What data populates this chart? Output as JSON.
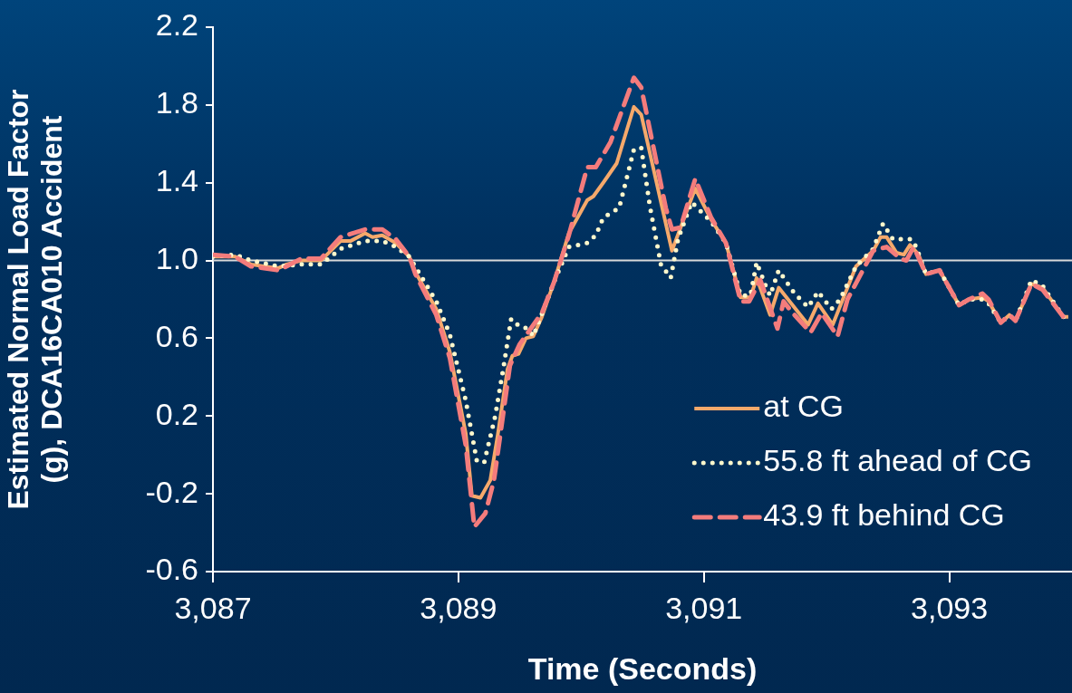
{
  "chart_data": {
    "type": "line",
    "xlabel": "Time (Seconds)",
    "ylabel": "Estimated Normal Load Factor (g), DCA16CA010 Accident",
    "xlim": [
      3087,
      3094
    ],
    "xticks": [
      {
        "value": 3087,
        "label": "3,087"
      },
      {
        "value": 3089,
        "label": "3,089"
      },
      {
        "value": 3091,
        "label": "3,091"
      },
      {
        "value": 3093,
        "label": "3,093"
      }
    ],
    "ylim": [
      -0.6,
      2.2
    ],
    "yticks": [
      -0.6,
      -0.2,
      0.2,
      0.6,
      {
        "value": 1,
        "label": "1.0"
      },
      1.4,
      1.8,
      2.2
    ],
    "grid": false,
    "legend": "bottom right",
    "marker": "none",
    "ref_lines": [
      {
        "axis": "y",
        "value": 1,
        "color": "#d9d9d9"
      }
    ],
    "series": [
      {
        "name": "at CG",
        "color": "#f6a96b",
        "line_style": "solid",
        "x": [
          3087.0,
          3087.18,
          3087.31,
          3087.53,
          3087.6,
          3087.72,
          3087.88,
          3088.04,
          3088.12,
          3088.24,
          3088.3,
          3088.38,
          3088.49,
          3088.6,
          3088.65,
          3088.82,
          3088.93,
          3089.06,
          3089.11,
          3089.18,
          3089.26,
          3089.32,
          3089.4,
          3089.44,
          3089.49,
          3089.55,
          3089.61,
          3089.68,
          3089.78,
          3089.9,
          3090.05,
          3090.1,
          3090.18,
          3090.29,
          3090.43,
          3090.49,
          3090.74,
          3090.93,
          3091.06,
          3091.18,
          3091.3,
          3091.38,
          3091.43,
          3091.54,
          3091.61,
          3091.85,
          3091.93,
          3092.05,
          3092.24,
          3092.38,
          3092.44,
          3092.49,
          3092.57,
          3092.63,
          3092.68,
          3092.75,
          3092.81,
          3092.92,
          3093.08,
          3093.16,
          3093.27,
          3093.32,
          3093.42,
          3093.49,
          3093.54,
          3093.67,
          3093.76,
          3093.93,
          3093.97
        ],
        "values": [
          1.02,
          1.02,
          0.98,
          0.96,
          0.98,
          1.0,
          1.0,
          1.1,
          1.1,
          1.14,
          1.12,
          1.13,
          1.09,
          1.02,
          0.94,
          0.75,
          0.53,
          0.11,
          -0.21,
          -0.22,
          -0.13,
          0.1,
          0.44,
          0.51,
          0.52,
          0.6,
          0.61,
          0.71,
          0.89,
          1.14,
          1.31,
          1.33,
          1.4,
          1.5,
          1.79,
          1.75,
          1.05,
          1.37,
          1.21,
          1.09,
          0.81,
          0.81,
          0.91,
          0.72,
          0.86,
          0.67,
          0.78,
          0.67,
          0.97,
          1.05,
          1.12,
          1.12,
          1.04,
          1.03,
          1.08,
          1.03,
          0.93,
          0.95,
          0.77,
          0.8,
          0.81,
          0.79,
          0.68,
          0.72,
          0.69,
          0.88,
          0.86,
          0.71,
          0.71
        ]
      },
      {
        "name": "55.8 ft ahead of CG",
        "color": "#fff8cc",
        "line_style": "dotted",
        "x": [
          3087.0,
          3087.18,
          3087.31,
          3087.53,
          3087.72,
          3087.88,
          3088.04,
          3088.24,
          3088.38,
          3088.49,
          3088.6,
          3088.82,
          3088.93,
          3089.06,
          3089.15,
          3089.21,
          3089.3,
          3089.37,
          3089.43,
          3089.5,
          3089.57,
          3089.61,
          3089.78,
          3089.9,
          3090.05,
          3090.12,
          3090.18,
          3090.31,
          3090.35,
          3090.43,
          3090.49,
          3090.56,
          3090.65,
          3090.73,
          3090.79,
          3090.9,
          3091.06,
          3091.18,
          3091.3,
          3091.38,
          3091.43,
          3091.51,
          3091.54,
          3091.61,
          3091.74,
          3091.85,
          3091.93,
          3092.04,
          3092.11,
          3092.24,
          3092.38,
          3092.46,
          3092.54,
          3092.69,
          3092.73,
          3092.81,
          3092.92,
          3093.08,
          3093.16,
          3093.27,
          3093.32,
          3093.42,
          3093.49,
          3093.54,
          3093.67,
          3093.76,
          3093.93,
          3093.97
        ],
        "values": [
          1.02,
          1.03,
          1.0,
          0.97,
          0.98,
          0.98,
          1.06,
          1.1,
          1.1,
          1.07,
          1.02,
          0.79,
          0.62,
          0.28,
          -0.03,
          -0.04,
          0.2,
          0.46,
          0.7,
          0.66,
          0.65,
          0.61,
          0.89,
          1.07,
          1.09,
          1.13,
          1.22,
          1.27,
          1.37,
          1.57,
          1.58,
          1.28,
          0.98,
          0.91,
          1.11,
          1.3,
          1.2,
          1.09,
          0.82,
          0.82,
          0.99,
          0.86,
          0.82,
          0.95,
          0.83,
          0.76,
          0.84,
          0.75,
          0.8,
          0.97,
          1.06,
          1.19,
          1.11,
          1.11,
          1.07,
          0.93,
          0.95,
          0.77,
          0.8,
          0.8,
          0.78,
          0.68,
          0.72,
          0.69,
          0.9,
          0.87,
          0.71,
          0.7
        ]
      },
      {
        "name": "43.9 ft behind CG",
        "color": "#f47c7c",
        "line_style": "dashed",
        "x": [
          3087.0,
          3087.18,
          3087.31,
          3087.53,
          3087.6,
          3087.72,
          3087.88,
          3088.04,
          3088.24,
          3088.38,
          3088.49,
          3088.6,
          3088.65,
          3088.82,
          3088.93,
          3089.06,
          3089.13,
          3089.22,
          3089.29,
          3089.42,
          3089.5,
          3089.68,
          3089.78,
          3089.9,
          3090.05,
          3090.12,
          3090.24,
          3090.43,
          3090.49,
          3090.69,
          3090.74,
          3090.81,
          3090.93,
          3091.06,
          3091.18,
          3091.3,
          3091.37,
          3091.46,
          3091.6,
          3091.65,
          3091.71,
          3091.87,
          3091.96,
          3092.09,
          3092.17,
          3092.38,
          3092.49,
          3092.6,
          3092.65,
          3092.71,
          3092.81,
          3092.92,
          3093.08,
          3093.16,
          3093.27,
          3093.32,
          3093.42,
          3093.49,
          3093.54,
          3093.67,
          3093.76,
          3093.93,
          3093.97
        ],
        "values": [
          1.03,
          1.02,
          0.97,
          0.95,
          0.97,
          1.01,
          1.01,
          1.12,
          1.16,
          1.16,
          1.11,
          1.02,
          0.93,
          0.72,
          0.5,
          0.05,
          -0.37,
          -0.3,
          -0.13,
          0.46,
          0.57,
          0.73,
          0.89,
          1.13,
          1.48,
          1.48,
          1.61,
          1.94,
          1.89,
          1.27,
          1.16,
          1.17,
          1.42,
          1.22,
          1.09,
          0.79,
          0.79,
          0.9,
          0.65,
          0.79,
          0.74,
          0.63,
          0.73,
          0.61,
          0.8,
          1.05,
          1.07,
          1.01,
          1.0,
          1.07,
          0.93,
          0.95,
          0.77,
          0.8,
          0.83,
          0.8,
          0.68,
          0.72,
          0.69,
          0.88,
          0.85,
          0.71,
          0.7
        ]
      }
    ]
  }
}
